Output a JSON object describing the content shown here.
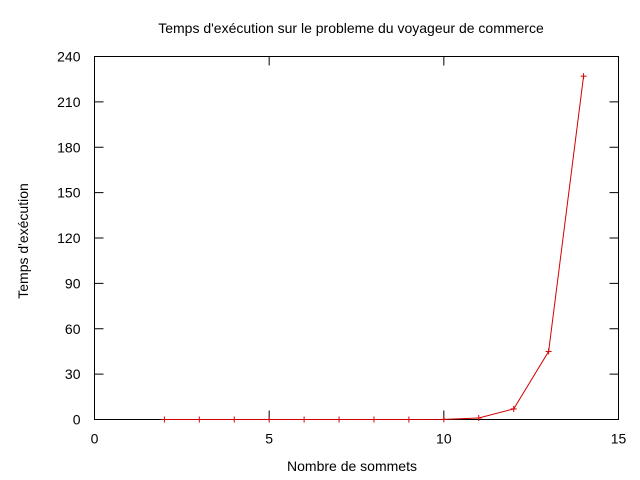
{
  "chart_data": {
    "type": "line",
    "title": "Temps d'exécution sur le probleme du voyageur de commerce",
    "xlabel": "Nombre de sommets",
    "ylabel": "Temps d'exécution",
    "xlim": [
      0,
      15
    ],
    "ylim": [
      0,
      240
    ],
    "xticks": [
      0,
      5,
      10,
      15
    ],
    "yticks": [
      0,
      30,
      60,
      90,
      120,
      150,
      180,
      210,
      240
    ],
    "grid": false,
    "legend": "none",
    "series": [
      {
        "color": "#d40000",
        "marker": "plus",
        "x": [
          2,
          3,
          4,
          5,
          6,
          7,
          8,
          9,
          10,
          11,
          12,
          13,
          14
        ],
        "y": [
          0,
          0,
          0,
          0,
          0,
          0,
          0,
          0,
          0.1,
          1,
          7,
          45,
          227
        ]
      }
    ]
  }
}
